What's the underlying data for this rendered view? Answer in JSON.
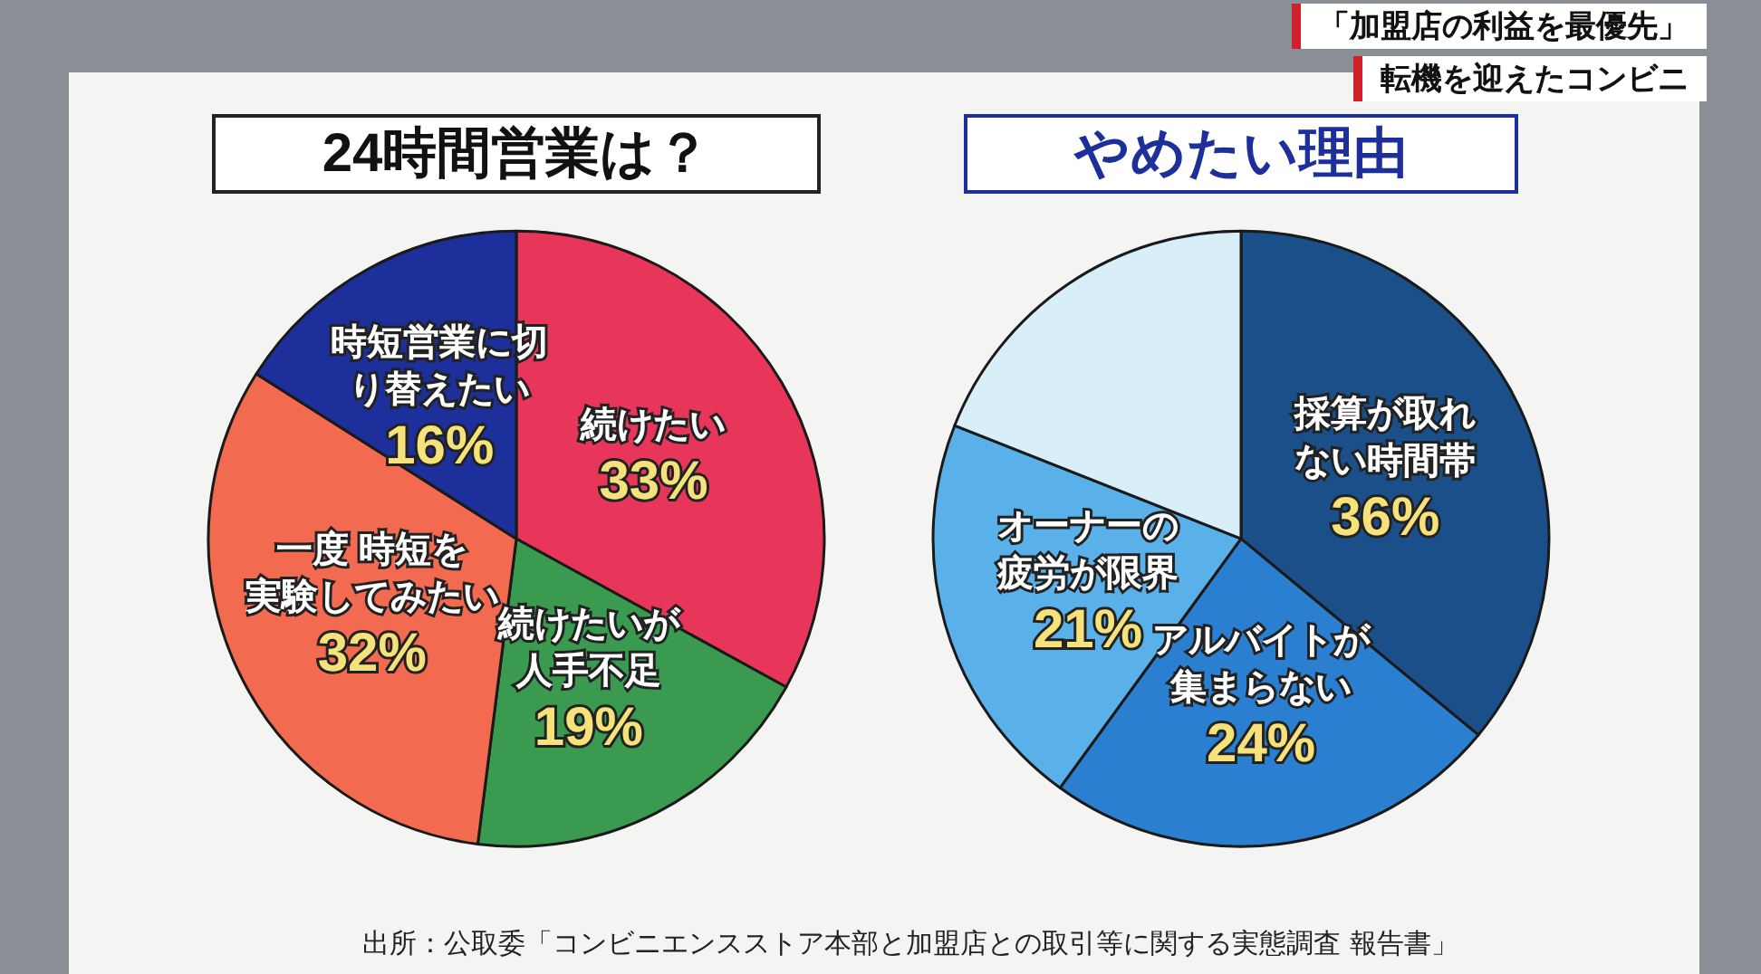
{
  "chart_data": [
    {
      "type": "pie",
      "title": "24時間営業は？",
      "categories": [
        "続けたい",
        "続けたいが人手不足",
        "一度 時短を実験してみたい",
        "時短営業に切り替えたい"
      ],
      "values": [
        33,
        19,
        32,
        16
      ],
      "value_labels": [
        "33%",
        "19%",
        "32%",
        "16%"
      ],
      "colors": [
        "#e8365a",
        "#3a9a50",
        "#f26a50",
        "#1d2f9a"
      ],
      "annotations": [
        "「加盟店の利益を最優先」",
        "転機を迎えたコンビニ"
      ]
    },
    {
      "type": "pie",
      "title": "やめたい理由",
      "categories": [
        "採算が取れない時間帯",
        "アルバイトが集まらない",
        "オーナーの疲労が限界",
        null
      ],
      "values": [
        36,
        24,
        21,
        19
      ],
      "value_labels": [
        "36%",
        "24%",
        "21%",
        null
      ],
      "colors": [
        "#1a4f8a",
        "#2a7fd0",
        "#5ab0e8",
        "#d8eef8"
      ],
      "annotations": [
        "出所：公取委「コンビニエンスストア本部と加盟店との取引等に関する実態調査 報告書」"
      ]
    }
  ]
}
